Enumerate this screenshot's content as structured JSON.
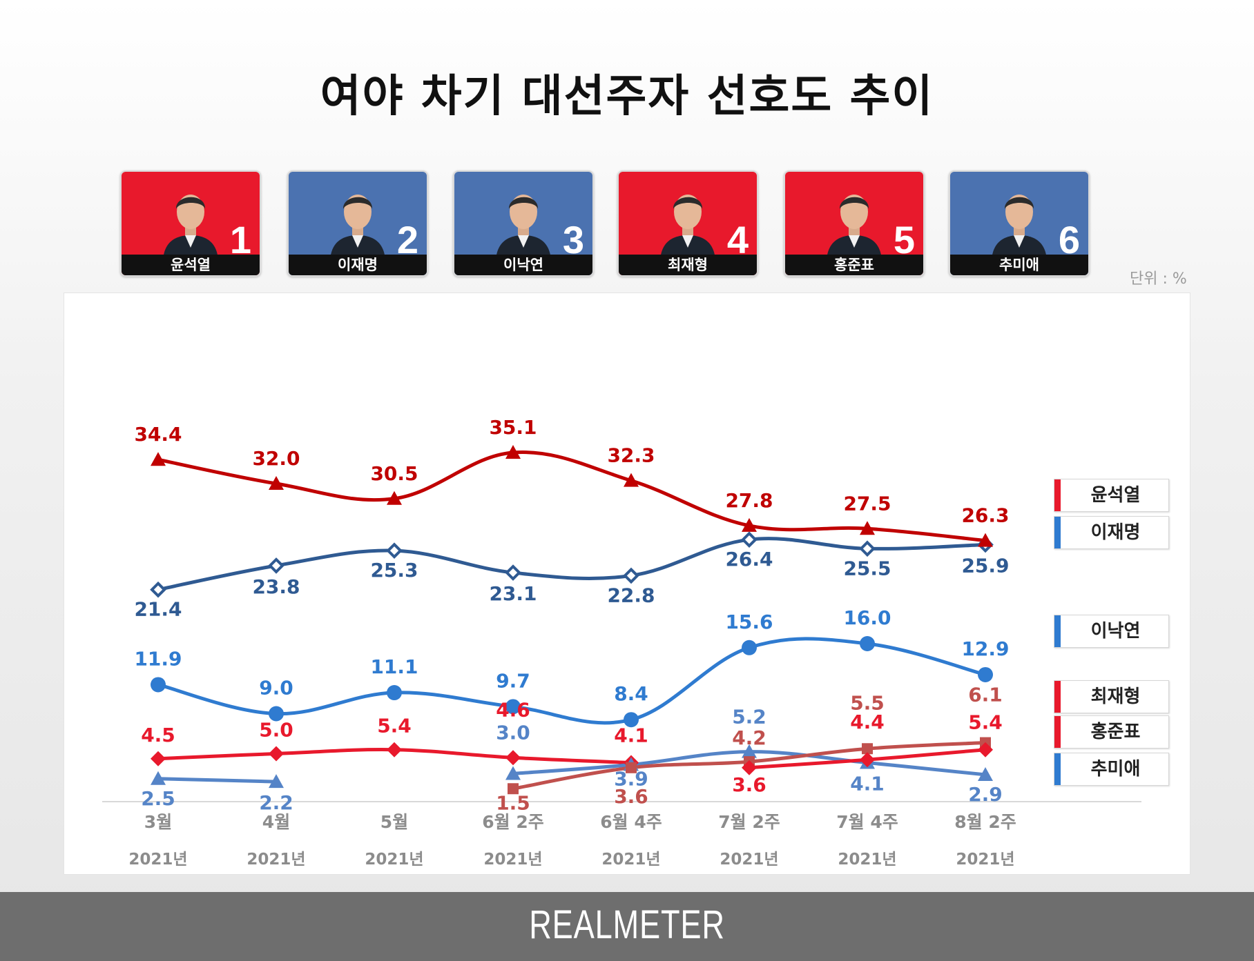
{
  "title": "여야 차기 대선주자 선호도 추이",
  "unit": "단위 : %",
  "brand": "REALMETER",
  "candidates": [
    {
      "rank": "1",
      "name": "윤석열",
      "color": "#e8192c"
    },
    {
      "rank": "2",
      "name": "이재명",
      "color": "#4b72b0"
    },
    {
      "rank": "3",
      "name": "이낙연",
      "color": "#4b72b0"
    },
    {
      "rank": "4",
      "name": "최재형",
      "color": "#e8192c"
    },
    {
      "rank": "5",
      "name": "홍준표",
      "color": "#e8192c"
    },
    {
      "rank": "6",
      "name": "추미애",
      "color": "#4b72b0"
    }
  ],
  "legend": [
    {
      "name": "윤석열",
      "color": "#e8192c"
    },
    {
      "name": "이재명",
      "color": "#2f7bd0"
    },
    {
      "name": "이낙연",
      "color": "#2f7bd0"
    },
    {
      "name": "최재형",
      "color": "#e8192c"
    },
    {
      "name": "홍준표",
      "color": "#e8192c"
    },
    {
      "name": "추미애",
      "color": "#2f7bd0"
    }
  ],
  "chart_data": {
    "type": "line",
    "x": [
      "3월",
      "4월",
      "5월",
      "6월 2주",
      "6월 4주",
      "7월 2주",
      "7월 4주",
      "8월 2주"
    ],
    "x_sub": [
      "2021년",
      "2021년",
      "2021년",
      "2021년",
      "2021년",
      "2021년",
      "2021년",
      "2021년"
    ],
    "ylim": [
      0,
      38
    ],
    "series": [
      {
        "name": "윤석열",
        "values": [
          34.4,
          32.0,
          30.5,
          35.1,
          32.3,
          27.8,
          27.5,
          26.3
        ],
        "color": "#c00000",
        "marker": "triangle",
        "labels_pos": "above"
      },
      {
        "name": "이재명",
        "values": [
          21.4,
          23.8,
          25.3,
          23.1,
          22.8,
          26.4,
          25.5,
          25.9
        ],
        "color": "#2f5a92",
        "marker": "diamond-open",
        "labels_pos": "below"
      },
      {
        "name": "이낙연",
        "values": [
          11.9,
          9.0,
          11.1,
          9.7,
          8.4,
          15.6,
          16.0,
          12.9
        ],
        "color": "#2f7bd0",
        "marker": "circle",
        "labels_pos": "above"
      },
      {
        "name": "최재형",
        "values": [
          null,
          null,
          null,
          null,
          null,
          3.6,
          4.4,
          5.4
        ],
        "color": "#e8192c",
        "marker": "diamond",
        "labels_pos": "mixed"
      },
      {
        "name": "홍준표",
        "values": [
          null,
          null,
          null,
          1.5,
          3.6,
          4.2,
          5.5,
          6.1
        ],
        "color": "#c0504d",
        "marker": "square",
        "labels_pos": "mixed"
      },
      {
        "name": "추미애",
        "values": [
          2.5,
          2.2,
          null,
          3.0,
          3.9,
          5.2,
          4.1,
          2.9
        ],
        "color": "#5584c7",
        "marker": "triangle",
        "labels_pos": "mixed"
      },
      {
        "name": "",
        "values": [
          4.5,
          5.0,
          5.4,
          4.6,
          4.1,
          null,
          null,
          null
        ],
        "color": "#e8192c",
        "marker": "diamond",
        "labels_pos": "above"
      }
    ],
    "grid": false,
    "legend_position": "right"
  }
}
